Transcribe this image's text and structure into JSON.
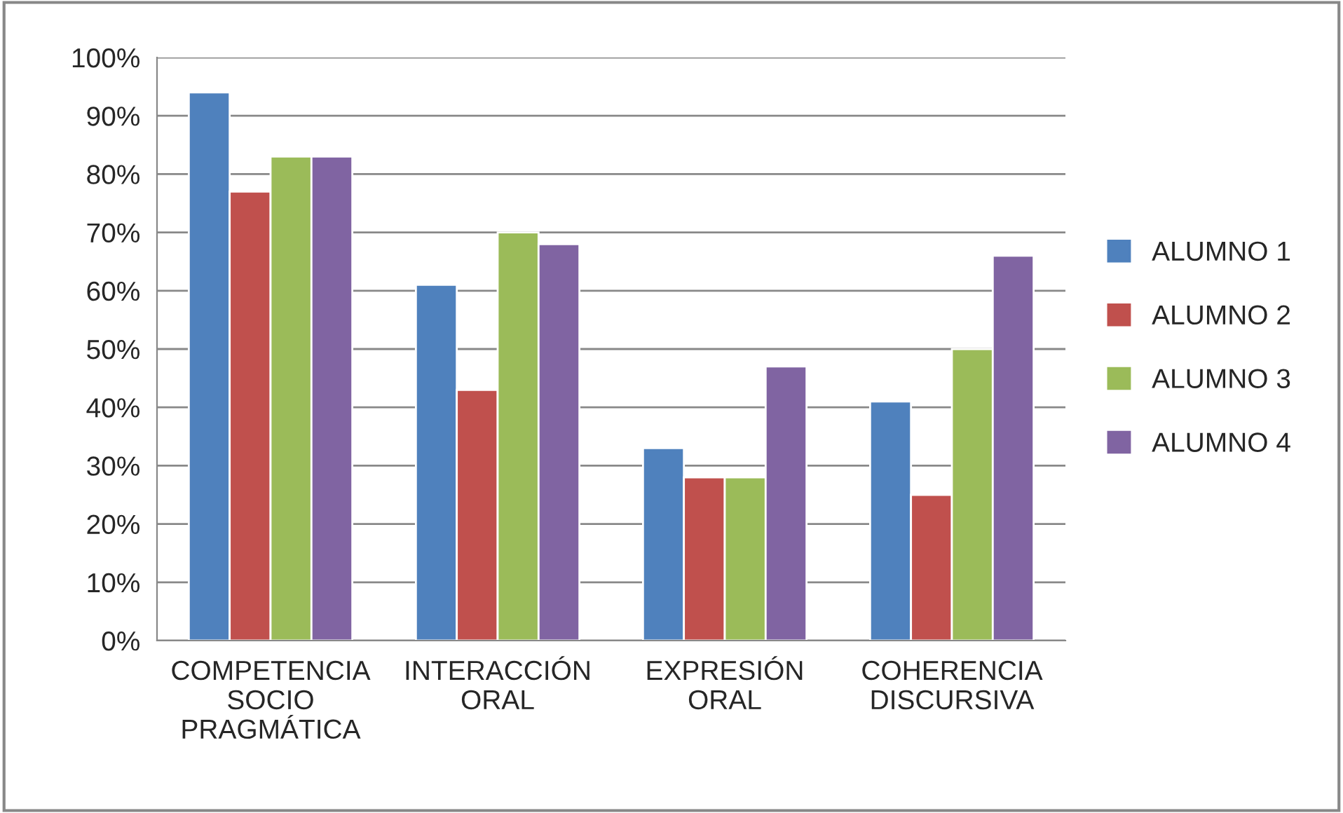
{
  "chart_data": {
    "type": "bar",
    "categories": [
      "COMPETENCIA\nSOCIO\nPRAGMÁTICA",
      "INTERACCIÓN\nORAL",
      "EXPRESIÓN\nORAL",
      "COHERENCIA\nDISCURSIVA"
    ],
    "series": [
      {
        "name": "ALUMNO 1",
        "color": "#4f81bd",
        "values": [
          94,
          61,
          33,
          41
        ]
      },
      {
        "name": "ALUMNO 2",
        "color": "#c0504d",
        "values": [
          77,
          43,
          28,
          25
        ]
      },
      {
        "name": "ALUMNO 3",
        "color": "#9bbb59",
        "values": [
          83,
          70,
          28,
          50
        ]
      },
      {
        "name": "ALUMNO 4",
        "color": "#8064a2",
        "values": [
          83,
          68,
          47,
          66
        ]
      }
    ],
    "ylim": [
      0,
      100
    ],
    "yticks": [
      {
        "value": 0,
        "label": "0%"
      },
      {
        "value": 10,
        "label": "10%"
      },
      {
        "value": 20,
        "label": "20%"
      },
      {
        "value": 30,
        "label": "30%"
      },
      {
        "value": 40,
        "label": "40%"
      },
      {
        "value": 50,
        "label": "50%"
      },
      {
        "value": 60,
        "label": "60%"
      },
      {
        "value": 70,
        "label": "70%"
      },
      {
        "value": 80,
        "label": "80%"
      },
      {
        "value": 90,
        "label": "90%"
      },
      {
        "value": 100,
        "label": "100%"
      }
    ],
    "grid": "y",
    "legend": "right"
  }
}
